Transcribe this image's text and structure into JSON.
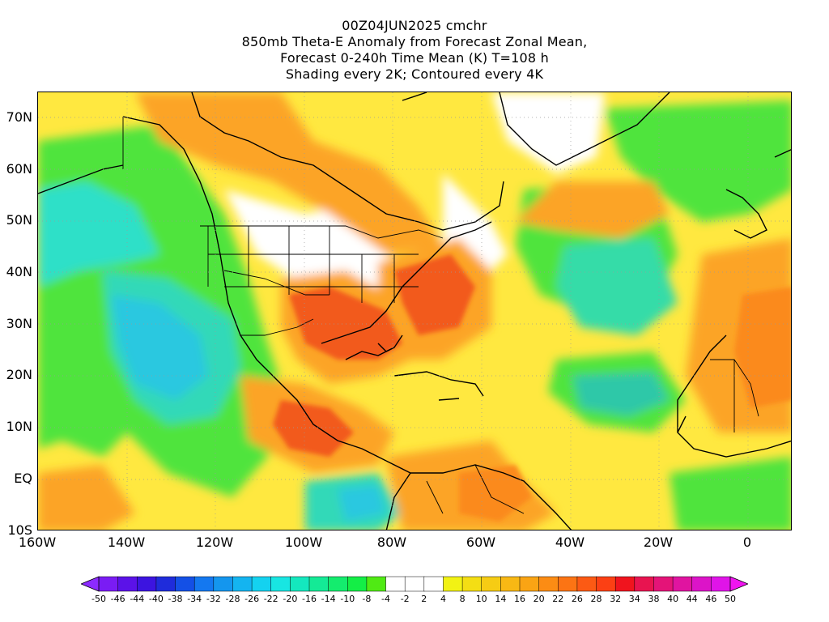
{
  "title": {
    "line1": "00Z04JUN2025 cmchr",
    "line2": "850mb Theta-E Anomaly from Forecast Zonal Mean,",
    "line3": "Forecast 0-240h Time Mean (K) T=108 h",
    "line4": "Shading every 2K; Contoured every 4K"
  },
  "map": {
    "lon_range": [
      -160,
      10
    ],
    "lat_range": [
      -10,
      75
    ],
    "lat_labels": [
      "70N",
      "60N",
      "50N",
      "40N",
      "30N",
      "20N",
      "10N",
      "EQ",
      "10S"
    ],
    "lat_values": [
      70,
      60,
      50,
      40,
      30,
      20,
      10,
      0,
      -10
    ],
    "lon_labels": [
      "160W",
      "140W",
      "120W",
      "100W",
      "80W",
      "60W",
      "40W",
      "20W",
      "0"
    ],
    "lon_values": [
      -160,
      -140,
      -120,
      -100,
      -80,
      -60,
      -40,
      -20,
      0
    ]
  },
  "colorbar": {
    "labels": [
      "-50",
      "-46",
      "-44",
      "-40",
      "-38",
      "-34",
      "-32",
      "-28",
      "-26",
      "-22",
      "-20",
      "-16",
      "-14",
      "-10",
      "-8",
      "-4",
      "-2",
      "2",
      "4",
      "8",
      "10",
      "14",
      "16",
      "20",
      "22",
      "26",
      "28",
      "32",
      "34",
      "38",
      "40",
      "44",
      "46",
      "50"
    ],
    "colors": [
      "#8c2bff",
      "#7a1cf4",
      "#5b12e8",
      "#3c14e0",
      "#1f2cdb",
      "#1450e6",
      "#1478f0",
      "#1496ee",
      "#14b4f0",
      "#14d2f0",
      "#18e6e2",
      "#14e8be",
      "#14ea96",
      "#14ec6e",
      "#14ee46",
      "#50ea14",
      "#ffffff",
      "#ffffff",
      "#ffffff",
      "#f2f214",
      "#f4de14",
      "#f6cc14",
      "#f8b814",
      "#faa414",
      "#fc8c14",
      "#fc7414",
      "#fc5a14",
      "#fc4014",
      "#f0141e",
      "#e81450",
      "#e41478",
      "#e014a0",
      "#dc14c8",
      "#e014e8",
      "#f014f0"
    ]
  }
}
